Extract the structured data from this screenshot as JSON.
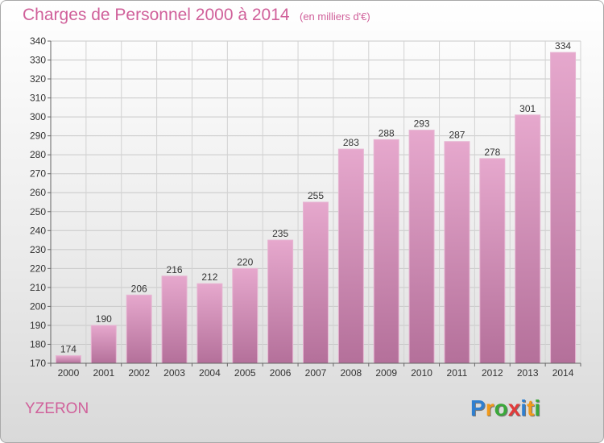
{
  "title": "Charges de Personnel 2000 à 2014",
  "subtitle": "(en milliers d'€)",
  "commune": "YZERON",
  "logo": {
    "letters": [
      "P",
      "r",
      "o",
      "x",
      "i",
      "t",
      "i"
    ],
    "colors": [
      "#2f7fd0",
      "#f29a1a",
      "#3aa83a",
      "#e23a3a",
      "#2f7fd0",
      "#f29a1a",
      "#3aa83a"
    ]
  },
  "colors": {
    "bar_top": "#e6a8cd",
    "bar_bottom": "#b4709a",
    "text_accent": "#d0609a"
  },
  "chart_data": {
    "type": "bar",
    "categories": [
      "2000",
      "2001",
      "2002",
      "2003",
      "2004",
      "2005",
      "2006",
      "2007",
      "2008",
      "2009",
      "2010",
      "2011",
      "2012",
      "2013",
      "2014"
    ],
    "values": [
      174,
      190,
      206,
      216,
      212,
      220,
      235,
      255,
      283,
      288,
      293,
      287,
      278,
      301,
      334
    ],
    "ylim": [
      170,
      340
    ],
    "yticks": [
      170,
      180,
      190,
      200,
      210,
      220,
      230,
      240,
      250,
      260,
      270,
      280,
      290,
      300,
      310,
      320,
      330,
      340
    ],
    "grid": true,
    "data_labels": true
  }
}
